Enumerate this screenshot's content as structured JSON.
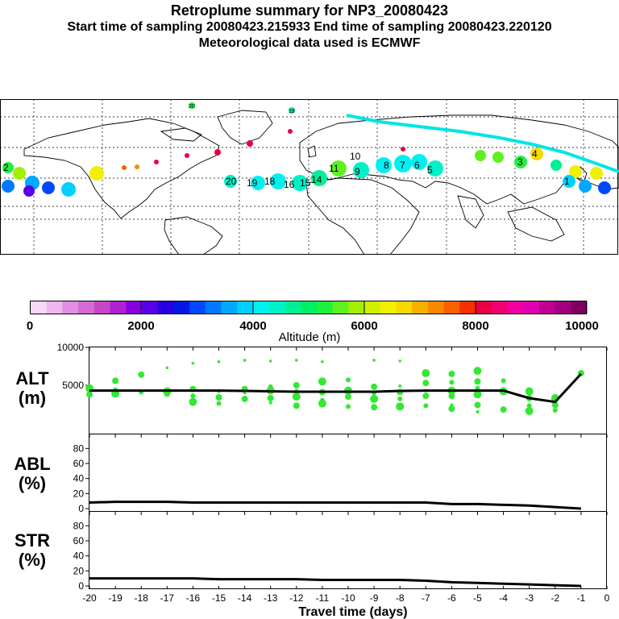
{
  "header": {
    "title": "Retroplume summary for NP3_20080423",
    "sampling": "Start time of sampling 20080423.215933     End time of sampling 20080423.220120",
    "met": "Meteorological data used is ECMWF"
  },
  "colors": {
    "plume_cyan": "#00e5e5",
    "dot_green": "#33e833",
    "line_black": "#000000"
  },
  "map": {
    "labels": [
      "20",
      "19",
      "18",
      "16",
      "15",
      "14",
      "13",
      "12",
      "11",
      "10",
      "9",
      "8",
      "7",
      "6",
      "5",
      "4",
      "3",
      "2",
      "1"
    ]
  },
  "colorbar": {
    "ticks": [
      "0",
      "2000",
      "4000",
      "6000",
      "8000",
      "10000"
    ],
    "label": "Altitude (m)",
    "colors": [
      "#f7d8f7",
      "#efb7ef",
      "#e28ee2",
      "#d66ad6",
      "#c646c6",
      "#b022d0",
      "#8a00e0",
      "#5a00e6",
      "#2800e0",
      "#0018e8",
      "#0048ff",
      "#0078ff",
      "#00a8ff",
      "#00d0ff",
      "#00f0f0",
      "#00f0c8",
      "#00f096",
      "#00f064",
      "#20f040",
      "#60f020",
      "#a0f000",
      "#d0f000",
      "#f0f000",
      "#f8d800",
      "#f8b000",
      "#f88800",
      "#f86000",
      "#f83000",
      "#e80040",
      "#f00070",
      "#f000a0",
      "#e000b0",
      "#c00090",
      "#a00080",
      "#800060"
    ]
  },
  "chart_data": [
    {
      "type": "scatter+line",
      "title": "ALT (m)",
      "ylabel": "ALT\n(m)",
      "ylim": [
        0,
        10000
      ],
      "yticks": [
        "10000",
        "5000"
      ],
      "x": [
        -20,
        -19,
        -18,
        -17,
        -16,
        -15,
        -14,
        -13,
        -12,
        -11,
        -10,
        -9,
        -8,
        -7,
        -6,
        -5,
        -4,
        -3,
        -2,
        -1
      ],
      "line_values": [
        4300,
        4300,
        4300,
        4300,
        4300,
        4300,
        4250,
        4200,
        4150,
        4150,
        4150,
        4150,
        4250,
        4300,
        4300,
        4300,
        4300,
        3300,
        2800,
        6500
      ],
      "cluster_values": [
        [
          3800,
          4600
        ],
        [
          3900,
          4400,
          5600
        ],
        [
          4100,
          6400
        ],
        [
          3900,
          4200,
          7300
        ],
        [
          2800,
          3600,
          4500,
          7900
        ],
        [
          2600,
          3400,
          4200,
          8100
        ],
        [
          3200,
          4000,
          4500,
          8300
        ],
        [
          2700,
          3300,
          4300,
          4800,
          8200
        ],
        [
          2300,
          3500,
          4200,
          5000,
          8300
        ],
        [
          2600,
          3000,
          4100,
          5500,
          8100
        ],
        [
          2200,
          3500,
          4300,
          5700
        ],
        [
          2100,
          3200,
          4000,
          4800,
          8300
        ],
        [
          2200,
          3200,
          4100,
          4900,
          8200
        ],
        [
          2300,
          3600,
          4300,
          5300,
          6600
        ],
        [
          1900,
          2400,
          3600,
          4300,
          5400,
          6500
        ],
        [
          1500,
          2400,
          3800,
          4600,
          5500,
          6900
        ],
        [
          1800,
          4200,
          5600
        ],
        [
          1600,
          2300,
          3300,
          4200
        ],
        [
          1700,
          2400,
          3300
        ],
        [
          6600
        ]
      ]
    },
    {
      "type": "line",
      "title": "ABL (%)",
      "ylabel": "ABL\n(%)",
      "ylim": [
        0,
        90
      ],
      "yticks": [
        "0",
        "20",
        "40",
        "60",
        "80"
      ],
      "x": [
        -20,
        -19,
        -18,
        -17,
        -16,
        -15,
        -14,
        -13,
        -12,
        -11,
        -10,
        -9,
        -8,
        -7,
        -6,
        -5,
        -4,
        -3,
        -2,
        -1
      ],
      "values": [
        8,
        9,
        9,
        9,
        8,
        8,
        8,
        8,
        8,
        8,
        8,
        8,
        8,
        8,
        6,
        6,
        5,
        4,
        2,
        0
      ]
    },
    {
      "type": "line",
      "title": "STR (%)",
      "ylabel": "STR\n(%)",
      "ylim": [
        0,
        90
      ],
      "yticks": [
        "0",
        "20",
        "40",
        "60",
        "80"
      ],
      "x": [
        -20,
        -19,
        -18,
        -17,
        -16,
        -15,
        -14,
        -13,
        -12,
        -11,
        -10,
        -9,
        -8,
        -7,
        -6,
        -5,
        -4,
        -3,
        -2,
        -1
      ],
      "values": [
        10,
        10,
        10,
        10,
        10,
        9,
        9,
        9,
        9,
        8,
        8,
        8,
        8,
        7,
        5,
        4,
        3,
        2,
        1,
        0
      ],
      "xlabel": "Travel time (days)",
      "xticks": [
        "-20",
        "-19",
        "-18",
        "-17",
        "-16",
        "-15",
        "-14",
        "-13",
        "-12",
        "-11",
        "-10",
        "-9",
        "-8",
        "-7",
        "-6",
        "-5",
        "-4",
        "-3",
        "-2",
        "-1",
        "0"
      ]
    }
  ]
}
